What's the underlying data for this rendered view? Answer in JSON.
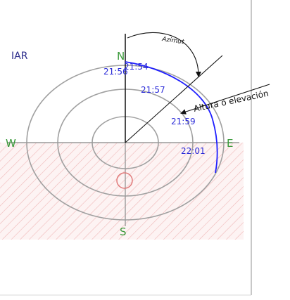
{
  "logo_text": "IAR",
  "compass": {
    "north": "N",
    "south": "S",
    "east": "E",
    "west": "W"
  },
  "annotations": {
    "azimuth": "Azimut",
    "altitude": "Altura o elevación"
  },
  "time_labels": [
    "21:54",
    "21:56",
    "21:57",
    "21:59",
    "22:01"
  ],
  "colors": {
    "path": "#1f1fff",
    "time_label": "#2a2ad8",
    "compass_label": "#3a9a3a",
    "ring": "#a0a0a0",
    "axis": "#9a9a9a",
    "hatch": "#f0b8b8",
    "ground_fill": "#fdf3f3",
    "marker": "#e07a7a",
    "logo": "#2a2a8a",
    "annotation": "#111111"
  }
}
